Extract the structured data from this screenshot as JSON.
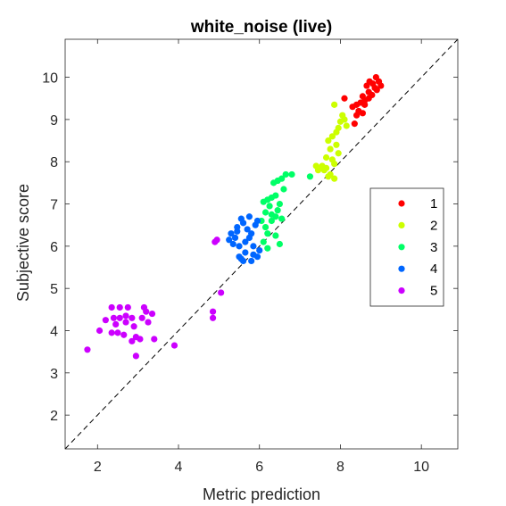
{
  "chart_data": {
    "type": "scatter",
    "title": "white_noise (live)",
    "xlabel": "Metric prediction",
    "ylabel": "Subjective score",
    "xlim": [
      1.2,
      10.9
    ],
    "ylim": [
      1.2,
      10.9
    ],
    "xticks": [
      2,
      4,
      6,
      8,
      10
    ],
    "yticks": [
      2,
      3,
      4,
      5,
      6,
      7,
      8,
      9,
      10
    ],
    "grid": false,
    "reference_line": "diagonal-dashed",
    "legend_position": "right",
    "series": [
      {
        "name": "1",
        "color": "#ff0000",
        "points": [
          [
            8.72,
            9.9
          ],
          [
            8.88,
            10.0
          ],
          [
            8.95,
            9.9
          ],
          [
            9.0,
            9.8
          ],
          [
            8.8,
            9.85
          ],
          [
            8.65,
            9.8
          ],
          [
            8.9,
            9.7
          ],
          [
            8.7,
            9.65
          ],
          [
            8.55,
            9.55
          ],
          [
            8.78,
            9.58
          ],
          [
            8.6,
            9.45
          ],
          [
            8.5,
            9.4
          ],
          [
            8.4,
            9.35
          ],
          [
            8.6,
            9.35
          ],
          [
            8.7,
            9.5
          ],
          [
            8.3,
            9.3
          ],
          [
            8.45,
            9.2
          ],
          [
            8.55,
            9.15
          ],
          [
            8.1,
            9.5
          ],
          [
            8.4,
            9.1
          ],
          [
            8.35,
            8.9
          ],
          [
            8.85,
            9.75
          ]
        ]
      },
      {
        "name": "2",
        "color": "#ccff00",
        "points": [
          [
            7.85,
            9.35
          ],
          [
            8.05,
            9.1
          ],
          [
            8.1,
            9.0
          ],
          [
            7.95,
            8.8
          ],
          [
            8.15,
            8.85
          ],
          [
            7.9,
            8.7
          ],
          [
            7.8,
            8.6
          ],
          [
            7.7,
            8.5
          ],
          [
            7.9,
            8.4
          ],
          [
            7.75,
            8.3
          ],
          [
            7.95,
            8.2
          ],
          [
            7.8,
            8.05
          ],
          [
            7.65,
            8.1
          ],
          [
            7.85,
            7.95
          ],
          [
            7.55,
            7.9
          ],
          [
            7.4,
            7.9
          ],
          [
            7.45,
            7.8
          ],
          [
            7.6,
            7.8
          ],
          [
            7.7,
            7.65
          ],
          [
            7.85,
            7.6
          ],
          [
            7.75,
            7.7
          ],
          [
            8.0,
            8.95
          ],
          [
            7.65,
            7.85
          ]
        ]
      },
      {
        "name": "3",
        "color": "#00ff66",
        "points": [
          [
            6.65,
            7.7
          ],
          [
            6.8,
            7.7
          ],
          [
            6.55,
            7.6
          ],
          [
            6.35,
            7.5
          ],
          [
            6.45,
            7.55
          ],
          [
            6.6,
            7.35
          ],
          [
            6.4,
            7.2
          ],
          [
            6.2,
            7.1
          ],
          [
            6.3,
            7.15
          ],
          [
            6.1,
            7.05
          ],
          [
            6.5,
            7.0
          ],
          [
            6.25,
            6.95
          ],
          [
            6.45,
            6.85
          ],
          [
            6.15,
            6.8
          ],
          [
            6.4,
            6.7
          ],
          [
            6.55,
            6.65
          ],
          [
            6.3,
            6.6
          ],
          [
            6.05,
            6.6
          ],
          [
            6.15,
            6.45
          ],
          [
            6.2,
            6.3
          ],
          [
            6.4,
            6.25
          ],
          [
            6.1,
            6.1
          ],
          [
            6.5,
            6.05
          ],
          [
            6.2,
            5.95
          ],
          [
            7.25,
            7.65
          ],
          [
            6.3,
            6.75
          ]
        ]
      },
      {
        "name": "4",
        "color": "#0066ff",
        "points": [
          [
            5.55,
            6.65
          ],
          [
            5.6,
            6.55
          ],
          [
            5.45,
            6.45
          ],
          [
            5.7,
            6.4
          ],
          [
            5.8,
            6.3
          ],
          [
            5.9,
            6.5
          ],
          [
            5.95,
            6.6
          ],
          [
            5.75,
            6.2
          ],
          [
            5.65,
            6.1
          ],
          [
            5.5,
            6.0
          ],
          [
            5.35,
            6.05
          ],
          [
            5.25,
            6.15
          ],
          [
            5.4,
            6.2
          ],
          [
            5.85,
            6.0
          ],
          [
            6.0,
            5.9
          ],
          [
            5.85,
            5.8
          ],
          [
            5.65,
            5.85
          ],
          [
            5.5,
            5.75
          ],
          [
            5.6,
            5.65
          ],
          [
            5.55,
            5.7
          ],
          [
            5.8,
            5.65
          ],
          [
            5.95,
            5.75
          ],
          [
            5.45,
            6.35
          ],
          [
            5.3,
            6.3
          ],
          [
            5.75,
            6.7
          ]
        ]
      },
      {
        "name": "5",
        "color": "#cc00ff",
        "points": [
          [
            2.35,
            4.55
          ],
          [
            2.55,
            4.55
          ],
          [
            2.75,
            4.55
          ],
          [
            3.15,
            4.55
          ],
          [
            3.2,
            4.45
          ],
          [
            3.35,
            4.4
          ],
          [
            2.4,
            4.3
          ],
          [
            2.55,
            4.3
          ],
          [
            2.7,
            4.35
          ],
          [
            2.85,
            4.3
          ],
          [
            3.1,
            4.3
          ],
          [
            3.25,
            4.2
          ],
          [
            2.45,
            4.15
          ],
          [
            2.2,
            4.25
          ],
          [
            2.7,
            4.2
          ],
          [
            2.9,
            4.1
          ],
          [
            2.5,
            3.95
          ],
          [
            2.35,
            3.95
          ],
          [
            2.65,
            3.9
          ],
          [
            2.95,
            3.85
          ],
          [
            2.85,
            3.75
          ],
          [
            3.05,
            3.8
          ],
          [
            3.4,
            3.8
          ],
          [
            2.05,
            4.0
          ],
          [
            1.75,
            3.55
          ],
          [
            2.95,
            3.4
          ],
          [
            3.9,
            3.65
          ],
          [
            4.9,
            6.1
          ],
          [
            4.95,
            6.15
          ],
          [
            5.05,
            4.9
          ],
          [
            4.85,
            4.45
          ],
          [
            4.85,
            4.3
          ]
        ]
      }
    ]
  }
}
